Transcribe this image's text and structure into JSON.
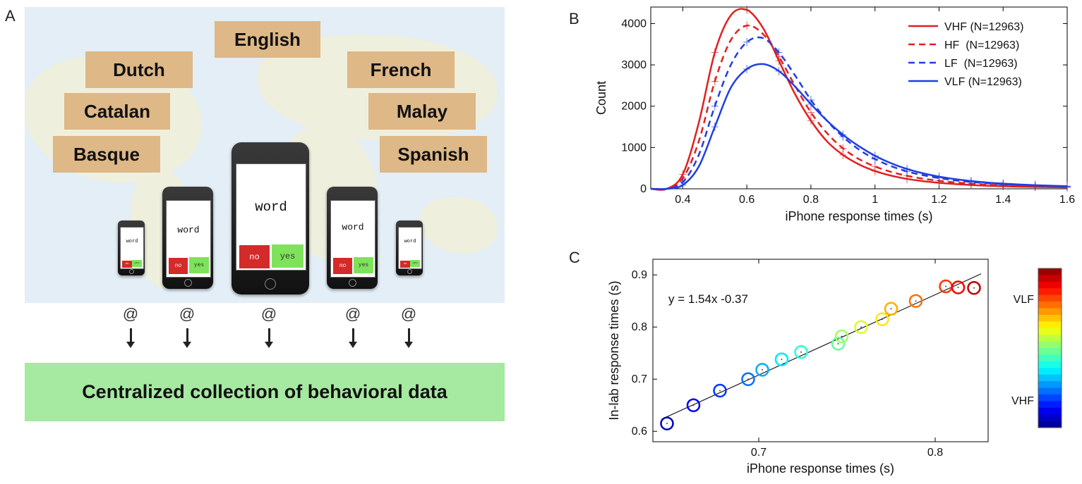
{
  "panels": {
    "a": "A",
    "b": "B",
    "c": "C"
  },
  "languages": [
    "English",
    "Dutch",
    "French",
    "Catalan",
    "Malay",
    "Basque",
    "Spanish"
  ],
  "phone": {
    "word": "word",
    "no": "no",
    "yes": "yes"
  },
  "at_symbol": "@",
  "collection_label": "Centralized collection of behavioral data",
  "colors": {
    "map_sea": "#e3eef6",
    "lang_box": "#deb887",
    "collect_box": "#a6e9a0",
    "no": "#d42a2a",
    "yes": "#7ee35a",
    "red": "#e02020",
    "blue": "#1f3fe0"
  },
  "chart_data": [
    {
      "type": "line",
      "panel": "B",
      "xlabel": "iPhone response times (s)",
      "ylabel": "Count",
      "xlim": [
        0.3,
        1.6
      ],
      "ylim": [
        0,
        4400
      ],
      "xticks": [
        "0.4",
        "0.6",
        "0.8",
        "1",
        "1.2",
        "1.4",
        "1.6"
      ],
      "yticks": [
        "0",
        "1000",
        "2000",
        "3000",
        "4000"
      ],
      "legend_position": "top-right",
      "x": [
        0.3,
        0.35,
        0.4,
        0.45,
        0.5,
        0.55,
        0.6,
        0.65,
        0.7,
        0.75,
        0.8,
        0.85,
        0.9,
        0.95,
        1.0,
        1.05,
        1.1,
        1.15,
        1.2,
        1.25,
        1.3,
        1.35,
        1.4,
        1.45,
        1.5,
        1.55,
        1.6
      ],
      "series": [
        {
          "name": "VHF (N=12963)",
          "color": "#e02020",
          "dash": "solid",
          "values": [
            0,
            0,
            350,
            1600,
            3300,
            4200,
            4330,
            3900,
            3100,
            2300,
            1650,
            1150,
            820,
            590,
            430,
            320,
            240,
            185,
            145,
            115,
            92,
            75,
            62,
            52,
            45,
            40,
            35
          ]
        },
        {
          "name": "HF  (N=12963)",
          "color": "#e02020",
          "dash": "dashed",
          "values": [
            0,
            0,
            250,
            1150,
            2600,
            3600,
            3950,
            3750,
            3200,
            2500,
            1850,
            1350,
            980,
            720,
            540,
            410,
            315,
            245,
            195,
            155,
            125,
            102,
            84,
            70,
            60,
            52,
            45
          ]
        },
        {
          "name": "LF  (N=12963)",
          "color": "#1f3fe0",
          "dash": "dashed",
          "values": [
            0,
            0,
            160,
            820,
            2000,
            3000,
            3550,
            3650,
            3300,
            2750,
            2150,
            1650,
            1260,
            950,
            720,
            550,
            420,
            330,
            260,
            205,
            165,
            135,
            110,
            92,
            78,
            66,
            57
          ]
        },
        {
          "name": "VLF (N=12963)",
          "color": "#1f3fe0",
          "dash": "solid",
          "values": [
            0,
            0,
            90,
            540,
            1500,
            2450,
            2900,
            3020,
            2850,
            2480,
            2050,
            1650,
            1310,
            1030,
            800,
            620,
            480,
            375,
            295,
            235,
            188,
            152,
            125,
            104,
            88,
            75,
            64
          ]
        }
      ]
    },
    {
      "type": "scatter",
      "panel": "C",
      "xlabel": "iPhone response times (s)",
      "ylabel": "In-lab response times (s)",
      "xlim": [
        0.64,
        0.83
      ],
      "ylim": [
        0.58,
        0.93
      ],
      "xticks": [
        "0.7",
        "0.8"
      ],
      "yticks": [
        "0.6",
        "0.7",
        "0.8",
        "0.9"
      ],
      "annotation": "y = 1.54x -0.37",
      "fit": {
        "slope": 1.54,
        "intercept": -0.37
      },
      "colorbar": {
        "top_label": "VLF",
        "bottom_label": "VHF"
      },
      "points": [
        {
          "x": 0.648,
          "y": 0.615
        },
        {
          "x": 0.663,
          "y": 0.65
        },
        {
          "x": 0.678,
          "y": 0.678
        },
        {
          "x": 0.694,
          "y": 0.7
        },
        {
          "x": 0.702,
          "y": 0.718
        },
        {
          "x": 0.713,
          "y": 0.738
        },
        {
          "x": 0.724,
          "y": 0.752
        },
        {
          "x": 0.745,
          "y": 0.768
        },
        {
          "x": 0.747,
          "y": 0.782
        },
        {
          "x": 0.758,
          "y": 0.8
        },
        {
          "x": 0.77,
          "y": 0.815
        },
        {
          "x": 0.775,
          "y": 0.835
        },
        {
          "x": 0.789,
          "y": 0.85
        },
        {
          "x": 0.806,
          "y": 0.878
        },
        {
          "x": 0.813,
          "y": 0.876
        },
        {
          "x": 0.822,
          "y": 0.875
        }
      ]
    }
  ]
}
